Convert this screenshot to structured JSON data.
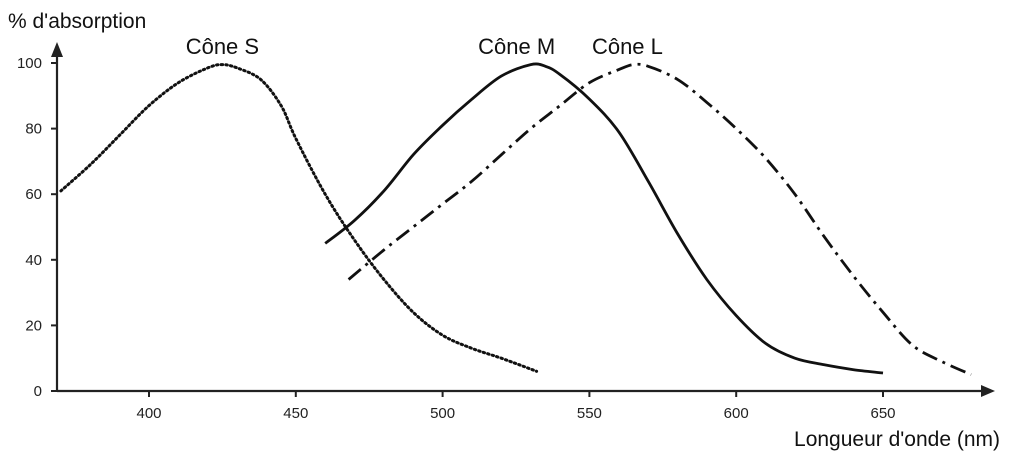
{
  "chart_data": {
    "type": "line",
    "title": "",
    "xlabel": "Longueur d'onde (nm)",
    "ylabel": "% d'absorption",
    "xlim": [
      370,
      690
    ],
    "ylim": [
      0,
      100
    ],
    "xticks": [
      400,
      450,
      500,
      550,
      600,
      650
    ],
    "yticks": [
      0,
      20,
      40,
      60,
      80,
      100
    ],
    "grid": false,
    "series": [
      {
        "name": "Cône S",
        "style": "dotted",
        "x": [
          370,
          380,
          390,
          400,
          410,
          420,
          425,
          430,
          438,
          445,
          450,
          460,
          470,
          480,
          490,
          500,
          510,
          520,
          532
        ],
        "y": [
          61,
          69,
          78,
          87,
          94,
          98.5,
          99.5,
          98.5,
          95,
          87,
          77,
          60,
          46,
          34,
          24,
          17,
          13,
          10,
          6
        ]
      },
      {
        "name": "Cône M",
        "style": "solid",
        "x": [
          460,
          470,
          480,
          490,
          500,
          510,
          520,
          530,
          535,
          540,
          550,
          560,
          570,
          580,
          590,
          600,
          610,
          620,
          630,
          640,
          650
        ],
        "y": [
          45,
          52,
          61,
          72,
          81,
          89,
          96,
          99.5,
          99,
          96.5,
          89,
          79,
          64,
          48,
          34,
          23,
          14.5,
          10,
          8,
          6.5,
          5.5
        ]
      },
      {
        "name": "Cône L",
        "style": "dash-dot",
        "x": [
          468,
          480,
          490,
          500,
          510,
          520,
          530,
          540,
          550,
          560,
          565,
          570,
          580,
          590,
          600,
          610,
          620,
          630,
          640,
          650,
          660,
          670,
          680
        ],
        "y": [
          34,
          43,
          50,
          57,
          64,
          72,
          80,
          87,
          94,
          98,
          99.5,
          99,
          95,
          88,
          80,
          71,
          60,
          47,
          35,
          24,
          14,
          9,
          5
        ]
      }
    ]
  }
}
